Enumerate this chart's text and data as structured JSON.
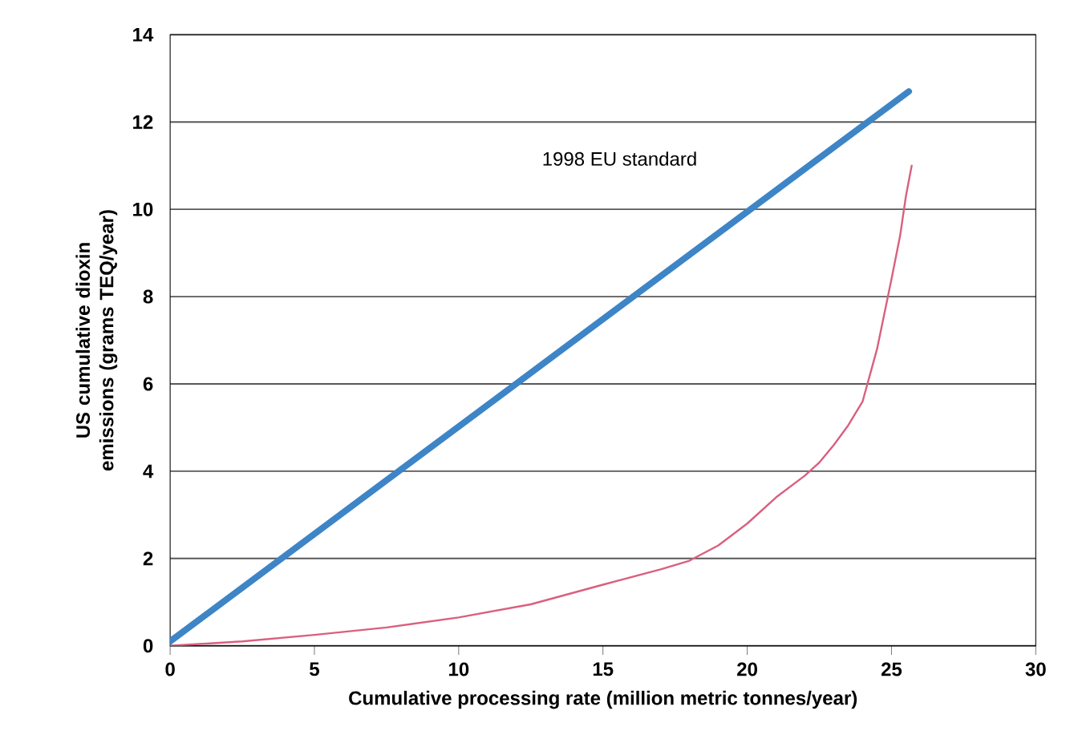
{
  "chart_data": {
    "type": "line",
    "xlabel": "Cumulative processing rate (million metric tonnes/year)",
    "ylabel": "US cumulative dioxin emissions (grams TEQ/year)",
    "series": [
      {
        "name": "1998 EU standard",
        "color": "#3d85c6",
        "x": [
          0,
          25.6
        ],
        "values": [
          0.1,
          12.7
        ]
      },
      {
        "color": "#d9607f",
        "x": [
          0,
          2.5,
          5,
          7.5,
          10,
          12.5,
          15,
          17,
          18,
          19,
          20,
          21,
          22,
          22.5,
          23,
          23.5,
          24,
          24.5,
          25,
          25.3,
          25.5,
          25.7
        ],
        "values": [
          0,
          0.1,
          0.25,
          0.42,
          0.65,
          0.95,
          1.4,
          1.75,
          1.95,
          2.3,
          2.8,
          3.4,
          3.9,
          4.2,
          4.6,
          5.05,
          5.6,
          6.8,
          8.4,
          9.4,
          10.3,
          11.0
        ]
      }
    ],
    "xlim": [
      0,
      30
    ],
    "ylim": [
      0,
      14
    ],
    "xticks": [
      0,
      5,
      10,
      15,
      20,
      25,
      30
    ],
    "yticks": [
      0,
      2,
      4,
      6,
      8,
      10,
      12,
      14
    ],
    "grid": "y",
    "legend": false,
    "marker": "none",
    "line_style": "solid"
  }
}
